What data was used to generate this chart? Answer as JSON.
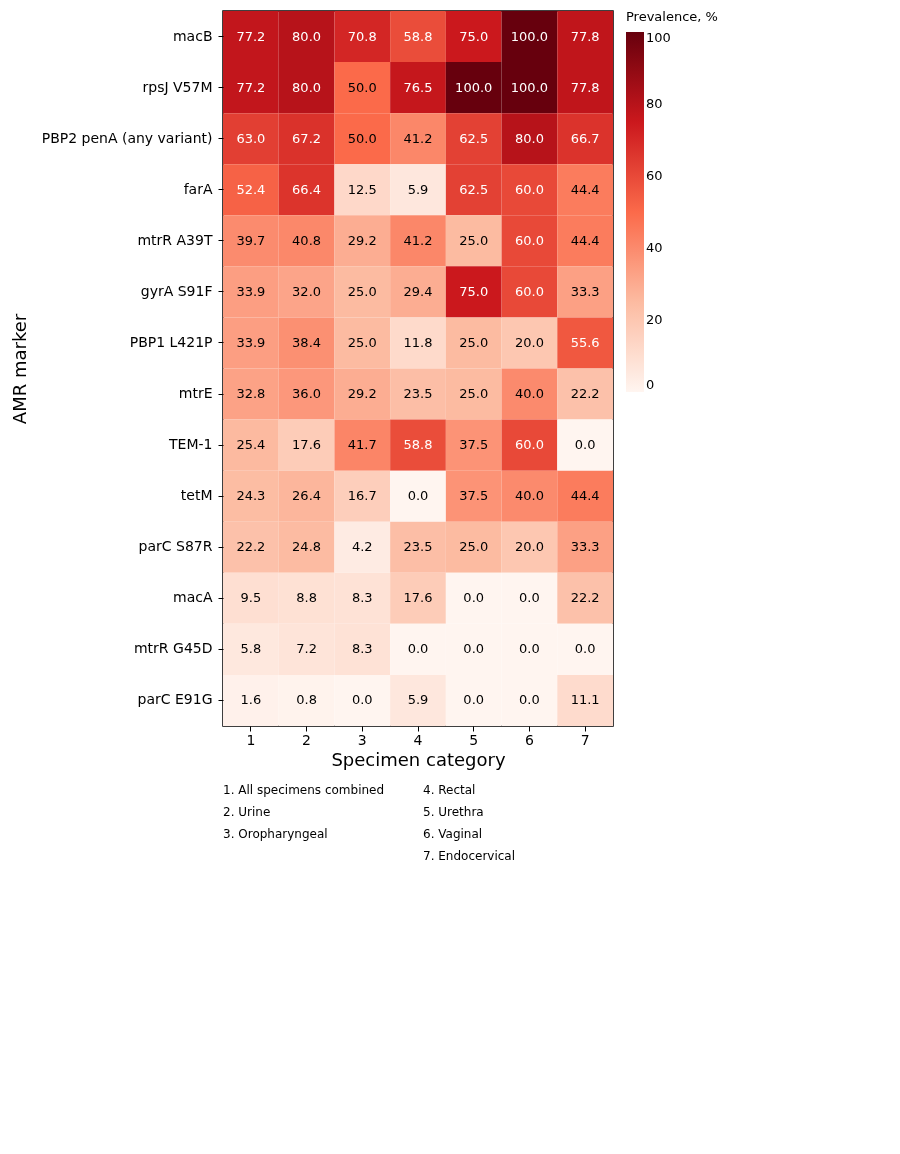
{
  "chart_data": {
    "type": "heatmap",
    "xlabel": "Specimen category",
    "ylabel": "AMR marker",
    "legend_title": "Prevalence, %",
    "categories": [
      "1",
      "2",
      "3",
      "4",
      "5",
      "6",
      "7"
    ],
    "y_categories": [
      "macB",
      "rpsJ V57M",
      "PBP2 penA (any variant)",
      "farA",
      "mtrR A39T",
      "gyrA S91F",
      "PBP1 L421P",
      "mtrE",
      "TEM-1",
      "tetM",
      "parC S87R",
      "macA",
      "mtrR G45D",
      "parC E91G"
    ],
    "cells": [
      [
        77.2,
        80.0,
        70.8,
        58.8,
        75.0,
        100.0,
        77.8
      ],
      [
        77.2,
        80.0,
        50.0,
        76.5,
        100.0,
        100.0,
        77.8
      ],
      [
        63.0,
        67.2,
        50.0,
        41.2,
        62.5,
        80.0,
        66.7
      ],
      [
        52.4,
        66.4,
        12.5,
        5.9,
        62.5,
        60.0,
        44.4
      ],
      [
        39.7,
        40.8,
        29.2,
        41.2,
        25.0,
        60.0,
        44.4
      ],
      [
        33.9,
        32.0,
        25.0,
        29.4,
        75.0,
        60.0,
        33.3
      ],
      [
        33.9,
        38.4,
        25.0,
        11.8,
        25.0,
        20.0,
        55.6
      ],
      [
        32.8,
        36.0,
        29.2,
        23.5,
        25.0,
        40.0,
        22.2
      ],
      [
        25.4,
        17.6,
        41.7,
        58.8,
        37.5,
        60.0,
        0.0
      ],
      [
        24.3,
        26.4,
        16.7,
        0.0,
        37.5,
        40.0,
        44.4
      ],
      [
        22.2,
        24.8,
        4.2,
        23.5,
        25.0,
        20.0,
        33.3
      ],
      [
        9.5,
        8.8,
        8.3,
        17.6,
        0.0,
        0.0,
        22.2
      ],
      [
        5.8,
        7.2,
        8.3,
        0.0,
        0.0,
        0.0,
        0.0
      ],
      [
        1.6,
        0.8,
        0.0,
        5.9,
        0.0,
        0.0,
        11.1
      ]
    ],
    "cell_labels": [
      [
        "77.2",
        "80.0",
        "70.8",
        "58.8",
        "75.0",
        "100.0",
        "77.8"
      ],
      [
        "77.2",
        "80.0",
        "50.0",
        "76.5",
        "100.0",
        "100.0",
        "77.8"
      ],
      [
        "63.0",
        "67.2",
        "50.0",
        "41.2",
        "62.5",
        "80.0",
        "66.7"
      ],
      [
        "52.4",
        "66.4",
        "12.5",
        "5.9",
        "62.5",
        "60.0",
        "44.4"
      ],
      [
        "39.7",
        "40.8",
        "29.2",
        "41.2",
        "25.0",
        "60.0",
        "44.4"
      ],
      [
        "33.9",
        "32.0",
        "25.0",
        "29.4",
        "75.0",
        "60.0",
        "33.3"
      ],
      [
        "33.9",
        "38.4",
        "25.0",
        "11.8",
        "25.0",
        "20.0",
        "55.6"
      ],
      [
        "32.8",
        "36.0",
        "29.2",
        "23.5",
        "25.0",
        "40.0",
        "22.2"
      ],
      [
        "25.4",
        "17.6",
        "41.7",
        "58.8",
        "37.5",
        "60.0",
        "0.0"
      ],
      [
        "24.3",
        "26.4",
        "16.7",
        "0.0",
        "37.5",
        "40.0",
        "44.4"
      ],
      [
        "22.2",
        "24.8",
        "4.2",
        "23.5",
        "25.0",
        "20.0",
        "33.3"
      ],
      [
        "9.5",
        "8.8",
        "8.3",
        "17.6",
        "0.0",
        "0.0",
        "22.2"
      ],
      [
        "5.8",
        "7.2",
        "8.3",
        "0.0",
        "0.0",
        "0.0",
        "0.0"
      ],
      [
        "1.6",
        "0.8",
        "0.0",
        "5.9",
        "0.0",
        "0.0",
        "11.1"
      ]
    ],
    "clim": [
      0,
      100
    ],
    "cticks": [
      0,
      20,
      40,
      60,
      80,
      100
    ],
    "annotations": [
      "1. All specimens combined",
      "2. Urine",
      "3. Oropharyngeal",
      "4. Rectal",
      "5. Urethra",
      "6. Vaginal",
      "7. Endocervical"
    ]
  }
}
